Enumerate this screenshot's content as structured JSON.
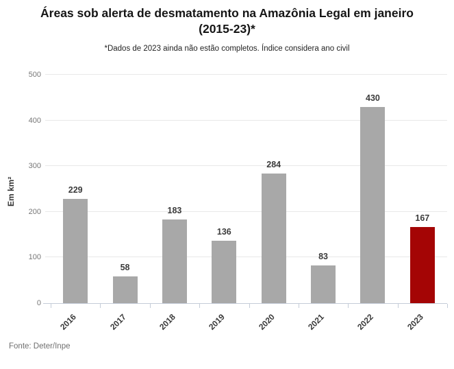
{
  "header": {
    "title_line1": "Áreas sob alerta de desmatamento na Amazônia Legal em janeiro",
    "title_line2": "(2015-23)*",
    "subtitle": "*Dados de 2023 ainda não estão completos. Índice considera ano civil"
  },
  "footer": {
    "source": "Fonte: Deter/Inpe"
  },
  "chart_data": {
    "type": "bar",
    "title": "Áreas sob alerta de desmatamento na Amazônia Legal em janeiro (2015-23)*",
    "subtitle": "*Dados de 2023 ainda não estão completos. Índice considera ano civil",
    "categories": [
      "2016",
      "2017",
      "2018",
      "2019",
      "2020",
      "2021",
      "2022",
      "2023"
    ],
    "values": [
      229,
      58,
      183,
      136,
      284,
      83,
      430,
      167
    ],
    "xlabel": "",
    "ylabel": "Em km²",
    "ylim": [
      0,
      500
    ],
    "yticks": [
      0,
      100,
      200,
      300,
      400,
      500
    ],
    "grid": true,
    "legend": false,
    "source": "Fonte: Deter/Inpe",
    "bar_color_default": "#a8a8a8",
    "bar_color_highlight": "#a40505",
    "highlight_category": "2023"
  }
}
